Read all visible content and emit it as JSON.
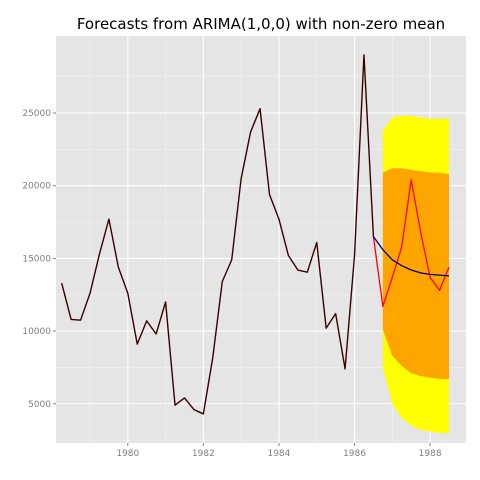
{
  "chart_data": {
    "type": "line",
    "title": "Forecasts from  ARIMA(1,0,0) with non-zero mean",
    "xlabel": "",
    "ylabel": "",
    "xlim": [
      1978.1,
      1988.95
    ],
    "ylim": [
      2300,
      30300
    ],
    "grid": true,
    "legend": "none",
    "x_ticks": [
      1980,
      1982,
      1984,
      1986,
      1988
    ],
    "x_tick_labels": [
      "1980",
      "1982",
      "1984",
      "1986",
      "1988"
    ],
    "y_ticks": [
      5000,
      10000,
      15000,
      20000,
      25000
    ],
    "y_tick_labels": [
      "5000",
      "10000",
      "15000",
      "20000",
      "25000"
    ],
    "colors": {
      "panel": "#e5e5e5",
      "grid_major": "#ffffff",
      "grid_minor": "#f2f2f2",
      "history": "#3a0000",
      "actual_test": "#ff0000",
      "forecast_mean": "#000080",
      "interval_80": "#ffa500",
      "interval_95": "#ffff00"
    },
    "history": {
      "x": [
        1978.25,
        1978.5,
        1978.75,
        1979.0,
        1979.25,
        1979.5,
        1979.75,
        1980.0,
        1980.25,
        1980.5,
        1980.75,
        1981.0,
        1981.25,
        1981.5,
        1981.75,
        1982.0,
        1982.25,
        1982.5,
        1982.75,
        1983.0,
        1983.25,
        1983.5,
        1983.75,
        1984.0,
        1984.25,
        1984.5,
        1984.75,
        1985.0,
        1985.25,
        1985.5,
        1985.75,
        1986.0,
        1986.25,
        1986.5
      ],
      "y": [
        13300,
        10800,
        10750,
        12600,
        15300,
        17700,
        14400,
        12600,
        9100,
        10700,
        9800,
        12000,
        4900,
        5400,
        4600,
        4300,
        8200,
        13400,
        14900,
        20500,
        23700,
        25300,
        19400,
        17700,
        15200,
        14200,
        14050,
        16100,
        10200,
        11200,
        7400,
        15200,
        29000,
        16500
      ]
    },
    "actual_test": {
      "x": [
        1986.5,
        1986.75,
        1987.0,
        1987.25,
        1987.5,
        1987.75,
        1988.0,
        1988.25,
        1988.5
      ],
      "y": [
        16500,
        11700,
        13700,
        15800,
        20400,
        16800,
        13700,
        12800,
        14400
      ]
    },
    "forecast": {
      "x": [
        1986.5,
        1986.75,
        1987.0,
        1987.25,
        1987.5,
        1987.75,
        1988.0,
        1988.25,
        1988.5
      ],
      "mean": [
        16500,
        15600,
        14900,
        14500,
        14200,
        14000,
        13900,
        13850,
        13800
      ],
      "lo80": [
        16500,
        10100,
        8300,
        7600,
        7100,
        6900,
        6800,
        6700,
        6700
      ],
      "hi80": [
        16500,
        20900,
        21200,
        21200,
        21100,
        21000,
        20900,
        20900,
        20800
      ],
      "lo95": [
        16500,
        7500,
        5000,
        4000,
        3500,
        3200,
        3100,
        3000,
        3000
      ],
      "hi95": [
        16500,
        23800,
        24700,
        24800,
        24800,
        24700,
        24600,
        24600,
        24600
      ]
    }
  }
}
